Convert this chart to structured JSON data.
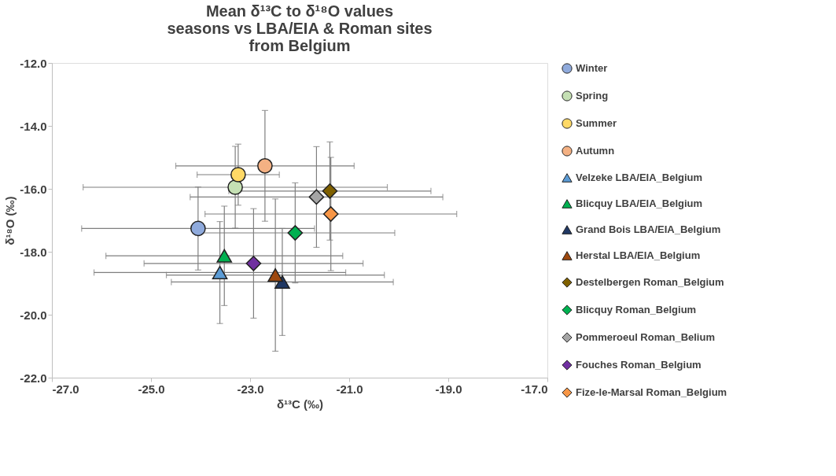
{
  "chart_data": {
    "type": "scatter",
    "title": "Mean δ¹³C to δ¹⁸O values\nseasons vs LBA/EIA & Roman sites\nfrom Belgium",
    "xlabel": "δ¹³C (‰)",
    "ylabel": "δ¹⁸O (‰)",
    "xlim": [
      -27,
      -17
    ],
    "ylim": [
      -22,
      -12
    ],
    "xticks": [
      {
        "value": -27,
        "label": "-27.0"
      },
      {
        "value": -25,
        "label": "-25.0"
      },
      {
        "value": -23,
        "label": "-23.0"
      },
      {
        "value": -21,
        "label": "-21.0"
      },
      {
        "value": -19,
        "label": "-19.0"
      },
      {
        "value": -17,
        "label": "-17.0"
      }
    ],
    "yticks": [
      {
        "value": -22,
        "label": "-22.0"
      },
      {
        "value": -20,
        "label": "-20.0"
      },
      {
        "value": -18,
        "label": "-18.0"
      },
      {
        "value": -16,
        "label": "-16.0"
      },
      {
        "value": -14,
        "label": "-14.0"
      },
      {
        "value": -12,
        "label": "-12.0"
      }
    ],
    "grid": false,
    "legend": "right",
    "series": [
      {
        "name": "Winter",
        "color": "#8faadc",
        "marker": "circle",
        "x": [
          -24.05
        ],
        "values": [
          -17.26
        ],
        "xerrors": [
          2.35
        ],
        "errors": [
          1.32
        ]
      },
      {
        "name": "Spring",
        "color": "#c5e0b4",
        "marker": "circle",
        "x": [
          -23.3
        ],
        "values": [
          -15.95
        ],
        "xerrors": [
          3.07
        ],
        "errors": [
          1.3
        ]
      },
      {
        "name": "Summer",
        "color": "#ffd966",
        "marker": "circle",
        "x": [
          -23.24
        ],
        "values": [
          -15.55
        ],
        "xerrors": [
          0.83
        ],
        "errors": [
          0.97
        ]
      },
      {
        "name": "Autumn",
        "color": "#f4b183",
        "marker": "circle",
        "x": [
          -22.7
        ],
        "values": [
          -15.27
        ],
        "xerrors": [
          1.8
        ],
        "errors": [
          1.76
        ]
      },
      {
        "name": "Velzeke LBA/EIA_Belgium",
        "color": "#5b9bd5",
        "marker": "triangle",
        "x": [
          -23.61
        ],
        "values": [
          -18.66
        ],
        "xerrors": [
          2.54
        ],
        "errors": [
          1.62
        ]
      },
      {
        "name": "Blicquy LBA/EIA_Belgium",
        "color": "#00b050",
        "marker": "triangle",
        "x": [
          -23.52
        ],
        "values": [
          -18.13
        ],
        "xerrors": [
          2.39
        ],
        "errors": [
          1.58
        ]
      },
      {
        "name": "Grand Bois LBA/EIA_Belgium",
        "color": "#203864",
        "marker": "triangle",
        "x": [
          -22.35
        ],
        "values": [
          -18.96
        ],
        "xerrors": [
          2.24
        ],
        "errors": [
          1.7
        ]
      },
      {
        "name": "Herstal LBA/EIA_Belgium",
        "color": "#9e480e",
        "marker": "triangle",
        "x": [
          -22.49
        ],
        "values": [
          -18.74
        ],
        "xerrors": [
          2.2
        ],
        "errors": [
          2.42
        ]
      },
      {
        "name": "Destelbergen Roman_Belgium",
        "color": "#7f6000",
        "marker": "diamond",
        "x": [
          -21.39
        ],
        "values": [
          -16.07
        ],
        "xerrors": [
          2.04
        ],
        "errors": [
          1.56
        ]
      },
      {
        "name": "Blicquy Roman_Belgium",
        "color": "#00b050",
        "marker": "diamond",
        "x": [
          -22.09
        ],
        "values": [
          -17.4
        ],
        "xerrors": [
          2.01
        ],
        "errors": [
          1.59
        ]
      },
      {
        "name": "Pommeroeul Roman_Belium",
        "color": "#a5a5a5",
        "marker": "diamond",
        "x": [
          -21.66
        ],
        "values": [
          -16.26
        ],
        "xerrors": [
          2.55
        ],
        "errors": [
          1.6
        ]
      },
      {
        "name": "Fouches Roman_Belgium",
        "color": "#7030a0",
        "marker": "diamond",
        "x": [
          -22.93
        ],
        "values": [
          -18.37
        ],
        "xerrors": [
          2.21
        ],
        "errors": [
          1.74
        ]
      },
      {
        "name": "Fize-le-Marsal Roman_Belgium",
        "color": "#f79646",
        "marker": "diamond",
        "x": [
          -21.37
        ],
        "values": [
          -16.8
        ],
        "xerrors": [
          2.54
        ],
        "errors": [
          1.8
        ]
      }
    ]
  }
}
